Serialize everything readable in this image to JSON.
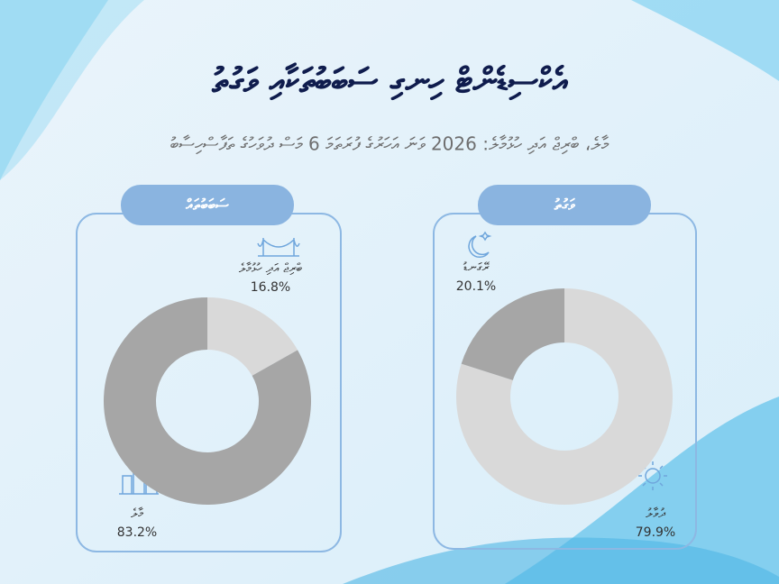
{
  "title": "އެކްސިޑެންޓް ހިނގި ސަބަބުތަކާއި ވަގުތު",
  "subtitle": "މާލެ، ބްރިޖް އަދި ހުޅުމާލެ: 2026 ވަނަ އަހަރުގެ ފުރަތަމަ 6 މަސް ދުވަހުގެ ތަފާސްހިސާބު",
  "chart_data": [
    {
      "type": "pie",
      "title": "ސަބަބުތައް",
      "categories": [
        "ބްރިޖް އަދި ހުޅުމާލެ",
        "މާލެ"
      ],
      "values": [
        16.8,
        83.2
      ],
      "value_labels": [
        "16.8%",
        "83.2%"
      ],
      "colors": [
        "#d9d9d9",
        "#a6a6a6"
      ]
    },
    {
      "type": "pie",
      "title": "ވަގުތު",
      "categories": [
        "ދުވާލު",
        "ރޭގަނޑު"
      ],
      "values": [
        79.9,
        20.1
      ],
      "value_labels": [
        "79.9%",
        "20.1%"
      ],
      "colors": [
        "#d9d9d9",
        "#a6a6a6"
      ]
    }
  ]
}
